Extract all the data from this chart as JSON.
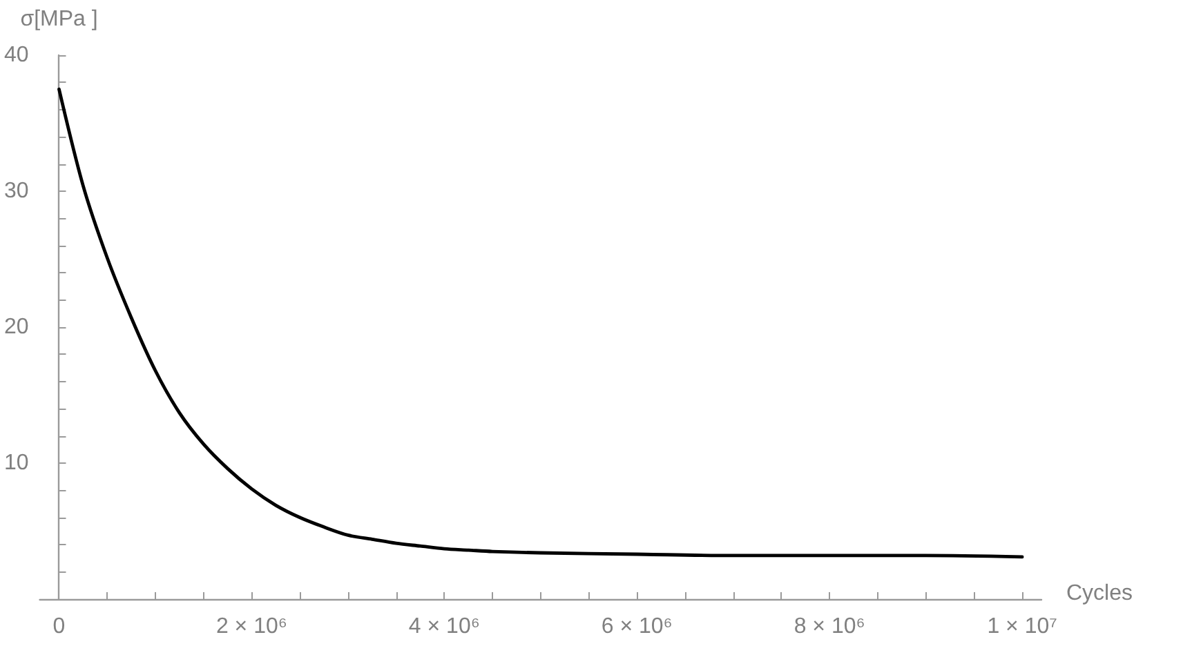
{
  "chart_data": {
    "type": "line",
    "xlabel": "Cycles",
    "ylabel": "σ[MPa ]",
    "color": "#000000",
    "marker": "none",
    "line_style": "solid",
    "grid": false,
    "x": [
      0,
      250000,
      500000,
      750000,
      1000000,
      1250000,
      1500000,
      1750000,
      2000000,
      2250000,
      2500000,
      2750000,
      3000000,
      3250000,
      3500000,
      3750000,
      4000000,
      4250000,
      4500000,
      5000000,
      6000000,
      7000000,
      8000000,
      9000000,
      10000000
    ],
    "values": [
      37.5,
      30.4,
      25.1,
      20.7,
      16.8,
      13.7,
      11.4,
      9.6,
      8.1,
      6.9,
      6.0,
      5.3,
      4.7,
      4.4,
      4.1,
      3.9,
      3.7,
      3.6,
      3.5,
      3.4,
      3.3,
      3.2,
      3.2,
      3.2,
      3.1
    ],
    "xlim": [
      -200000,
      10200000
    ],
    "ylim": [
      0,
      40
    ],
    "xticks": [
      0,
      {
        "value": 500000,
        "label": null
      },
      {
        "value": 1000000,
        "label": null
      },
      {
        "value": 1500000,
        "label": null
      },
      {
        "value": 2000000,
        "label": "2 × 10⁶"
      },
      {
        "value": 2500000,
        "label": null
      },
      {
        "value": 3000000,
        "label": null
      },
      {
        "value": 3500000,
        "label": null
      },
      {
        "value": 4000000,
        "label": "4 × 10⁶"
      },
      {
        "value": 4500000,
        "label": null
      },
      {
        "value": 5000000,
        "label": null
      },
      {
        "value": 5500000,
        "label": null
      },
      {
        "value": 6000000,
        "label": "6 × 10⁶"
      },
      {
        "value": 6500000,
        "label": null
      },
      {
        "value": 7000000,
        "label": null
      },
      {
        "value": 7500000,
        "label": null
      },
      {
        "value": 8000000,
        "label": "8 × 10⁶"
      },
      {
        "value": 8500000,
        "label": null
      },
      {
        "value": 9000000,
        "label": null
      },
      {
        "value": 9500000,
        "label": null
      },
      {
        "value": 10000000,
        "label": "1 × 10⁷"
      }
    ],
    "yticks": [
      {
        "value": 2,
        "label": null
      },
      {
        "value": 4,
        "label": null
      },
      {
        "value": 6,
        "label": null
      },
      {
        "value": 8,
        "label": null
      },
      10,
      {
        "value": 12,
        "label": null
      },
      {
        "value": 14,
        "label": null
      },
      {
        "value": 16,
        "label": null
      },
      {
        "value": 18,
        "label": null
      },
      20,
      {
        "value": 22,
        "label": null
      },
      {
        "value": 24,
        "label": null
      },
      {
        "value": 26,
        "label": null
      },
      {
        "value": 28,
        "label": null
      },
      30,
      {
        "value": 32,
        "label": null
      },
      {
        "value": 34,
        "label": null
      },
      {
        "value": 36,
        "label": null
      },
      {
        "value": 38,
        "label": null
      },
      40
    ]
  }
}
